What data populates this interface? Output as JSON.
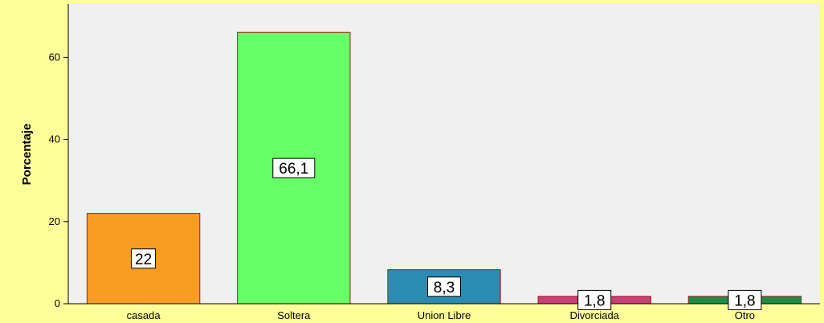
{
  "chart_data": {
    "type": "bar",
    "title": "",
    "xlabel": "",
    "ylabel": "Porcentaje",
    "categories": [
      "casada",
      "Soltera",
      "Union Libre",
      "Divorciada",
      "Otro"
    ],
    "values": [
      22,
      66.1,
      8.3,
      1.8,
      1.8
    ],
    "data_labels": [
      "22",
      "66,1",
      "8,3",
      "1,8",
      "1,8"
    ],
    "ylim": [
      0,
      73
    ],
    "yticks": [
      0,
      20,
      40,
      60
    ],
    "ytick_labels": [
      "0",
      "20",
      "40",
      "60"
    ],
    "grid": false,
    "legend": "none",
    "colors": [
      "#f99c22",
      "#66ff66",
      "#2a8cb0",
      "#cc3d7d",
      "#1e8c46"
    ],
    "bar_edge_color": "#a02020",
    "plot_background": "#f0f0f0",
    "page_background": "#ffff99"
  }
}
